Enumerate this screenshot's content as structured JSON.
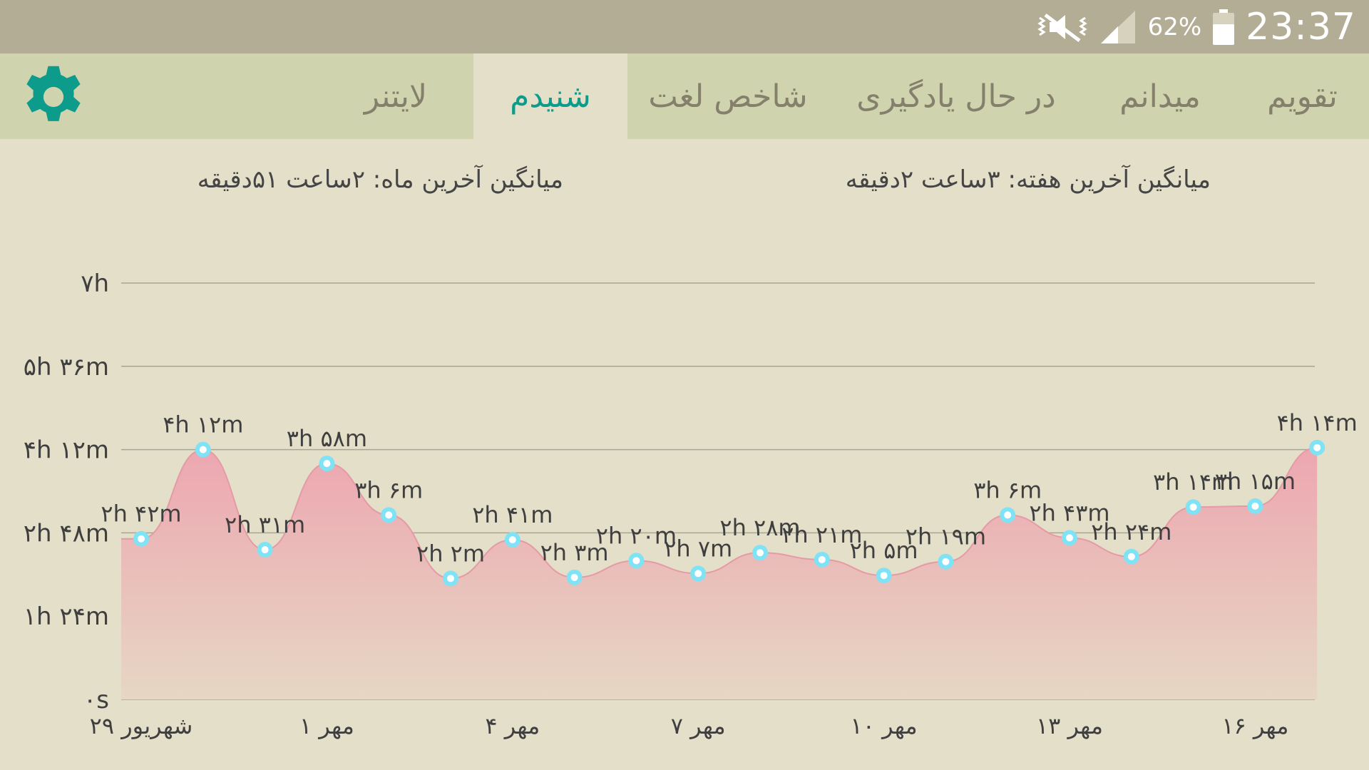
{
  "status": {
    "battery": "62%",
    "time": "23:37"
  },
  "tabs": [
    {
      "label": "تقویم",
      "active": false
    },
    {
      "label": "میدانم",
      "active": false
    },
    {
      "label": "در حال یادگیری",
      "active": false
    },
    {
      "label": "شاخص لغت",
      "active": false
    },
    {
      "label": "شنیدم",
      "active": true
    },
    {
      "label": "لایتنر",
      "active": false
    }
  ],
  "averages": {
    "week": "میانگین آخرین هفته:  ۳ساعت  ۲دقیقه",
    "month": "میانگین آخرین ماه:  ۲ساعت  ۵۱دقیقه"
  },
  "colors": {
    "accent": "#0d9b8c",
    "area_top": "#eda6b0",
    "area_bottom": "#e6d7c4",
    "point": "#7fe3f5",
    "gridline": "#a9a592"
  },
  "chart_data": {
    "type": "area",
    "y_unit": "minutes",
    "ylim": [
      0,
      420
    ],
    "y_ticks": [
      {
        "value": 0,
        "label": "۰s"
      },
      {
        "value": 84,
        "label": "۱h ۲۴m"
      },
      {
        "value": 168,
        "label": "۲h ۴۸m"
      },
      {
        "value": 252,
        "label": "۴h ۱۲m"
      },
      {
        "value": 336,
        "label": "۵h ۳۶m"
      },
      {
        "value": 420,
        "label": "۷h"
      }
    ],
    "x_ticks": [
      {
        "index": 0,
        "label": "۲۹ شهریور"
      },
      {
        "index": 3,
        "label": "۱ مهر"
      },
      {
        "index": 6,
        "label": "۴ مهر"
      },
      {
        "index": 9,
        "label": "۷ مهر"
      },
      {
        "index": 12,
        "label": "۱۰ مهر"
      },
      {
        "index": 15,
        "label": "۱۳ مهر"
      },
      {
        "index": 18,
        "label": "۱۶ مهر"
      }
    ],
    "grid": true,
    "points": [
      {
        "value": 162,
        "label": "۲h ۴۲m"
      },
      {
        "value": 252,
        "label": "۴h ۱۲m"
      },
      {
        "value": 151,
        "label": "۲h ۳۱m"
      },
      {
        "value": 238,
        "label": "۳h ۵۸m"
      },
      {
        "value": 186,
        "label": "۳h ۶m"
      },
      {
        "value": 122,
        "label": "۲h ۲m"
      },
      {
        "value": 161,
        "label": "۲h ۴۱m"
      },
      {
        "value": 123,
        "label": "۲h ۳m"
      },
      {
        "value": 140,
        "label": "۲h ۲۰m"
      },
      {
        "value": 127,
        "label": "۲h ۷m"
      },
      {
        "value": 148,
        "label": "۲h ۲۸m"
      },
      {
        "value": 141,
        "label": "۲h ۲۱m"
      },
      {
        "value": 125,
        "label": "۲h ۵m"
      },
      {
        "value": 139,
        "label": "۲h ۱۹m"
      },
      {
        "value": 186,
        "label": "۳h ۶m"
      },
      {
        "value": 163,
        "label": "۲h ۴۳m"
      },
      {
        "value": 144,
        "label": "۲h ۲۴m"
      },
      {
        "value": 194,
        "label": "۳h ۱۴m"
      },
      {
        "value": 195,
        "label": "۳h ۱۵m"
      },
      {
        "value": 254,
        "label": "۴h ۱۴m"
      }
    ]
  }
}
